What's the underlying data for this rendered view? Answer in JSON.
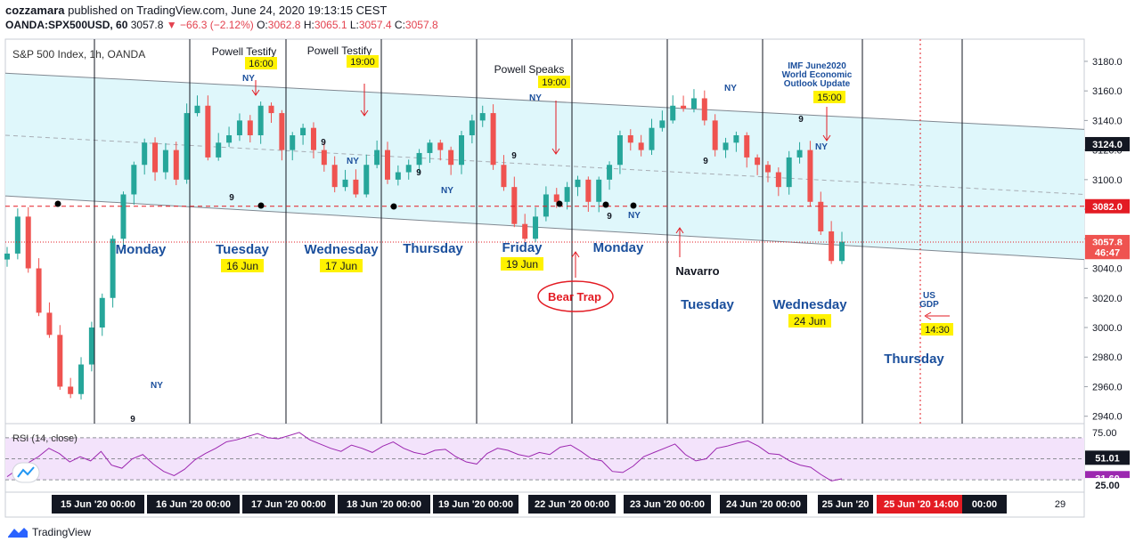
{
  "header": {
    "author": "cozzamara",
    "published": "published on TradingView.com, June 24, 2020 19:13:15 CEST",
    "symbol": "OANDA:SPX500USD, 60",
    "last": "3057.8",
    "change": "−66.3 (−2.12%)",
    "o_label": "O:",
    "o": "3062.8",
    "h_label": "H:",
    "h": "3065.1",
    "l_label": "L:",
    "l": "3057.4",
    "c_label": "C:",
    "c": "3057.8"
  },
  "footer": {
    "brand": "TradingView"
  },
  "colors": {
    "up": "#26a69a",
    "down": "#ef5350",
    "channel_fill": "#dff7fb",
    "rsi_fill": "#f3e3fb",
    "rsi_line": "#9c27b0",
    "annot_blue": "#1b4f9c",
    "label_yellow": "#fff200",
    "red_line": "#e31b23"
  },
  "chart_data": {
    "type": "candlestick",
    "title": "S&P 500 Index, 1h, OANDA",
    "ylim": [
      2935,
      3195
    ],
    "y_ticks": [
      "3180.0",
      "3160.0",
      "3140.0",
      "3120.0",
      "3100.0",
      "3080.0",
      "3060.0",
      "3040.0",
      "3020.0",
      "3000.0",
      "2980.0",
      "2960.0",
      "2940.0"
    ],
    "price_badges": [
      {
        "value": 3124.0,
        "text": "3124.0",
        "color": "#131722"
      },
      {
        "value": 3082.0,
        "text": "3082.0",
        "color": "#e31b23"
      },
      {
        "value": 3057.8,
        "text": "3057.8",
        "color": "#ef5350"
      },
      {
        "value": 3051.0,
        "text": "46:47",
        "color": "#ef5350"
      }
    ],
    "levels": [
      3082.0,
      3057.8
    ],
    "x_labels": [
      "15 Jun '20   00:00",
      "16 Jun '20   00:00",
      "17 Jun '20   00:00",
      "18 Jun '20   00:00",
      "19 Jun '20   00:00",
      "22 Jun '20   00:00",
      "23 Jun '20   00:00",
      "24 Jun '20   00:00",
      "25 Jun '20",
      "25 Jun '20   14:00",
      "00:00",
      "29"
    ],
    "session_closes": [
      3050,
      3075,
      3040,
      3010,
      2995,
      2960,
      2955,
      2975,
      3000,
      3020,
      3060,
      3090,
      3110,
      3125,
      3105,
      3120,
      3100,
      3145,
      3150,
      3115,
      3125,
      3130,
      3140,
      3130,
      3150,
      3145,
      3120,
      3130,
      3135,
      3120,
      3110,
      3095,
      3100,
      3090,
      3110,
      3120,
      3100,
      3105,
      3110,
      3118,
      3125,
      3120,
      3110,
      3130,
      3140,
      3145,
      3110,
      3095,
      3070,
      3060,
      3075,
      3090,
      3085,
      3095,
      3100,
      3085,
      3100,
      3110,
      3130,
      3125,
      3120,
      3135,
      3140,
      3150,
      3148,
      3155,
      3140,
      3120,
      3125,
      3130,
      3115,
      3110,
      3105,
      3095,
      3115,
      3120,
      3085,
      3065,
      3045,
      3058
    ],
    "session_labels": [
      {
        "day": "Monday",
        "date": ""
      },
      {
        "day": "Tuesday",
        "date": "16 Jun"
      },
      {
        "day": "Wednesday",
        "date": "17 Jun"
      },
      {
        "day": "Thursday",
        "date": ""
      },
      {
        "day": "Friday",
        "date": "19 Jun"
      },
      {
        "day": "Monday",
        "date": ""
      },
      {
        "day": "Tuesday",
        "date": ""
      },
      {
        "day": "Wednesday",
        "date": "24 Jun"
      },
      {
        "day": "Thursday",
        "date": ""
      }
    ],
    "events": [
      {
        "title": "Powell Testify",
        "time": "16:00"
      },
      {
        "title": "Powell Testify",
        "time": "19:00"
      },
      {
        "title": "Powell Speaks",
        "time": "19:00"
      },
      {
        "title": "IMF June2020\nWorld Economic\nOutlook Update",
        "time": "15:00"
      },
      {
        "title": "US\nGDP",
        "time": "14:30"
      }
    ],
    "annotations": {
      "bear_trap": "Bear Trap",
      "navarro": "Navarro",
      "ny": "NY",
      "nine": "9"
    },
    "rsi": {
      "label": "RSI (14, close)",
      "ylim": [
        20,
        80
      ],
      "ticks": [
        "75.00"
      ],
      "badges": [
        {
          "value": 51.01,
          "text": "51.01"
        },
        {
          "value": 31.6,
          "text": "31.60"
        },
        {
          "value": 25.0,
          "text": "25.00"
        }
      ],
      "values": [
        33,
        40,
        46,
        52,
        60,
        55,
        47,
        52,
        48,
        57,
        44,
        41,
        50,
        54,
        45,
        38,
        34,
        40,
        49,
        55,
        60,
        66,
        68,
        71,
        74,
        70,
        69,
        72,
        75,
        68,
        64,
        60,
        57,
        63,
        60,
        56,
        62,
        66,
        60,
        56,
        54,
        58,
        59,
        52,
        47,
        45,
        55,
        60,
        58,
        54,
        52,
        56,
        54,
        61,
        63,
        57,
        50,
        48,
        38,
        37,
        43,
        52,
        56,
        60,
        64,
        54,
        48,
        50,
        60,
        62,
        65,
        67,
        62,
        55,
        54,
        48,
        44,
        42,
        35,
        29,
        31
      ]
    }
  }
}
